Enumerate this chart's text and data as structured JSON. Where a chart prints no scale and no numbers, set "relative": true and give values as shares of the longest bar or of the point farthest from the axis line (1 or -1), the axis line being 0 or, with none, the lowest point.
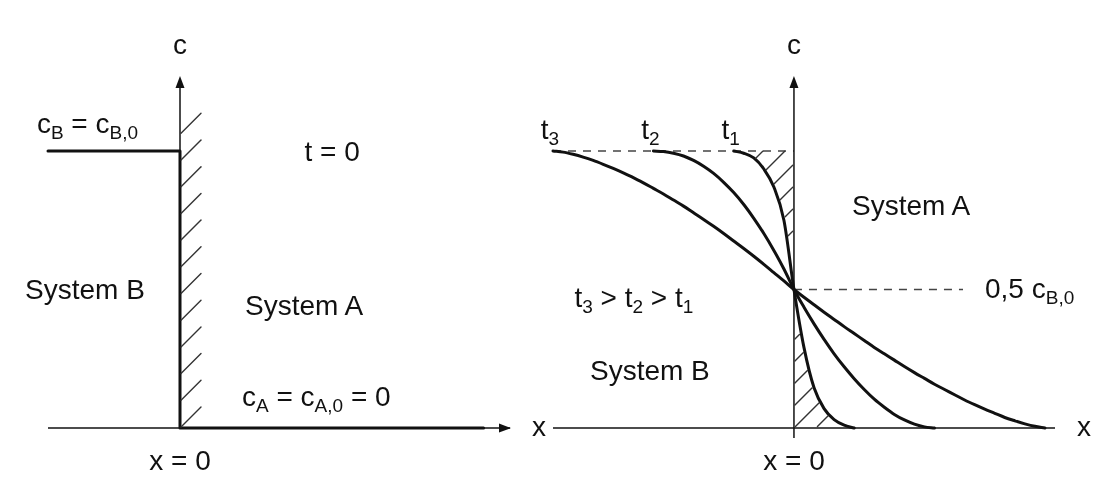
{
  "chart_data": [
    {
      "type": "step",
      "xlabel": "x",
      "ylabel": "c",
      "relative": true,
      "categories": [
        null,
        null,
        null,
        null,
        null,
        null,
        null,
        null,
        null,
        null,
        null,
        null,
        null,
        null,
        null,
        null,
        null,
        null,
        null,
        null,
        null,
        null,
        null,
        null,
        null,
        null,
        null,
        null,
        null,
        null,
        null,
        null,
        null,
        null,
        null,
        null
      ],
      "series": [
        {
          "color": "#111111",
          "values": [
            1,
            1,
            1,
            1,
            1,
            1,
            1,
            1,
            1,
            1,
            0,
            0,
            0,
            0,
            0,
            0,
            0,
            0,
            0,
            0,
            0,
            0,
            0,
            0,
            0,
            0,
            0,
            0,
            0,
            0,
            0,
            0,
            0,
            0,
            null,
            null
          ]
        }
      ],
      "annotations": [
        {
          "text": "c$_{B}$ = c$_{B,0}$",
          "y": 1
        },
        "t = 0",
        "System B",
        "System A",
        {
          "text": "c$_{A}$ = c$_{A,0}$ = 0",
          "y": 0
        },
        "x = 0"
      ]
    },
    {
      "type": "line",
      "xlabel": "x",
      "ylabel": "c",
      "relative": true,
      "categories": [
        null,
        null,
        null,
        null,
        null,
        null,
        null,
        null,
        null,
        null,
        null,
        null,
        null,
        null,
        null,
        null,
        null,
        null,
        null,
        null,
        null,
        null,
        null,
        null,
        null,
        null,
        null,
        null,
        null,
        null,
        null,
        null,
        null,
        null,
        null,
        null,
        null,
        null,
        null,
        null,
        null,
        null,
        null,
        null,
        null,
        null,
        null,
        null,
        null,
        null,
        null
      ],
      "series": [
        {
          "name": "t$_{3}$",
          "color": "#111111",
          "values": [
            1,
            0.996,
            0.988,
            0.978,
            0.966,
            0.952,
            0.937,
            0.921,
            0.904,
            0.885,
            0.865,
            0.845,
            0.823,
            0.801,
            0.777,
            0.753,
            0.728,
            0.702,
            0.675,
            0.648,
            0.62,
            0.591,
            0.561,
            0.531,
            0.5,
            0.472,
            0.445,
            0.418,
            0.392,
            0.366,
            0.341,
            0.316,
            0.291,
            0.268,
            0.245,
            0.222,
            0.2,
            0.179,
            0.158,
            0.139,
            0.12,
            0.101,
            0.084,
            0.068,
            0.053,
            0.038,
            0.026,
            0.015,
            0.006,
            0,
            null
          ]
        },
        {
          "name": "t$_{2}$",
          "color": "#111111",
          "values": [
            null,
            null,
            null,
            null,
            null,
            null,
            null,
            null,
            null,
            null,
            1,
            0.998,
            0.992,
            0.982,
            0.966,
            0.945,
            0.919,
            0.887,
            0.85,
            0.807,
            0.757,
            0.702,
            0.641,
            0.574,
            0.5,
            0.436,
            0.376,
            0.32,
            0.268,
            0.221,
            0.178,
            0.139,
            0.104,
            0.075,
            0.049,
            0.029,
            0.014,
            0.004,
            0,
            null,
            null,
            null,
            null,
            null,
            null,
            null,
            null,
            null,
            null,
            null,
            null
          ]
        },
        {
          "name": "t$_{1}$",
          "color": "#111111",
          "values": [
            null,
            null,
            null,
            null,
            null,
            null,
            null,
            null,
            null,
            null,
            null,
            null,
            null,
            null,
            null,
            null,
            null,
            null,
            1,
            0.992,
            0.975,
            0.935,
            0.87,
            0.75,
            0.5,
            0.29,
            0.145,
            0.07,
            0.03,
            0.01,
            0,
            null,
            null,
            null,
            null,
            null,
            null,
            null,
            null,
            null,
            null,
            null,
            null,
            null,
            null,
            null,
            null,
            null,
            null,
            null,
            null
          ]
        }
      ],
      "ref_lines": [
        {
          "axis": "y",
          "value": 1,
          "color": "#444444",
          "line_style": "dashed"
        },
        {
          "axis": "y",
          "value": 0.5,
          "label": "0,5 c$_{B,0}$",
          "color": "#444444",
          "line_style": "dashed"
        }
      ],
      "annotations": [
        "System A",
        "t$_{3}$ > t$_{2}$ > t$_{1}$",
        "System B",
        "x = 0"
      ]
    }
  ]
}
